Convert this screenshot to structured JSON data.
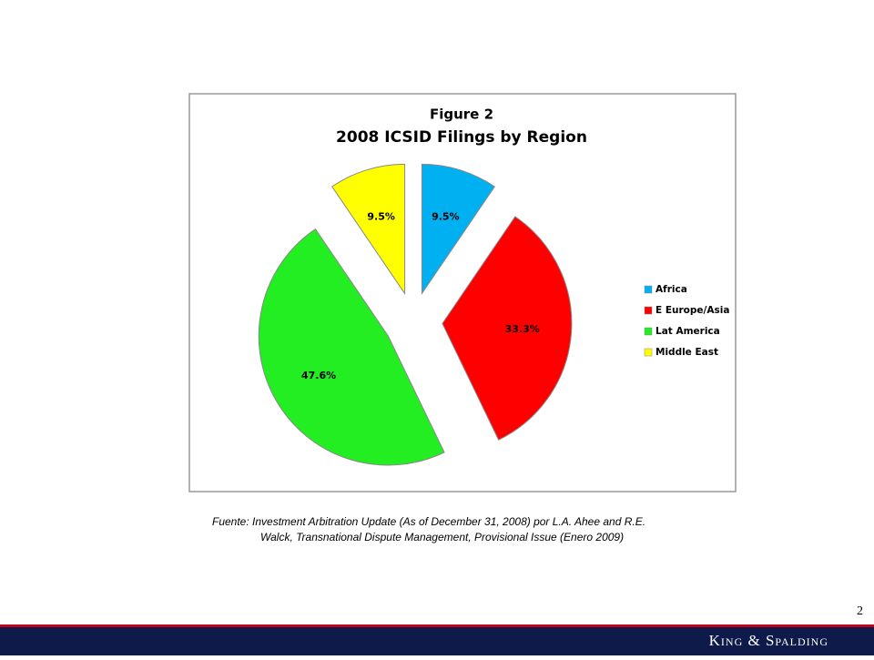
{
  "chart_data": {
    "type": "pie",
    "title": "Figure 2",
    "subtitle": "2008 ICSID Filings by Region",
    "categories": [
      "Africa",
      "E Europe/Asia",
      "Lat America",
      "Middle East"
    ],
    "values": [
      9.5,
      33.3,
      47.6,
      9.5
    ],
    "value_labels": [
      "9.5%",
      "33.3%",
      "47.6%",
      "9.5%"
    ],
    "colors": [
      "#00b0f0",
      "#ff0000",
      "#22ee22",
      "#ffff00"
    ],
    "legend": "right"
  },
  "slide": {
    "source": [
      "Fuente:  Investment Arbitration Update (As of December 31, 2008) por L.A. Ahee and R.E.",
      "Walck, Transnational Dispute Management, Provisional Issue (Enero 2009)"
    ],
    "page_number": 2,
    "brand": "King & Spalding"
  }
}
